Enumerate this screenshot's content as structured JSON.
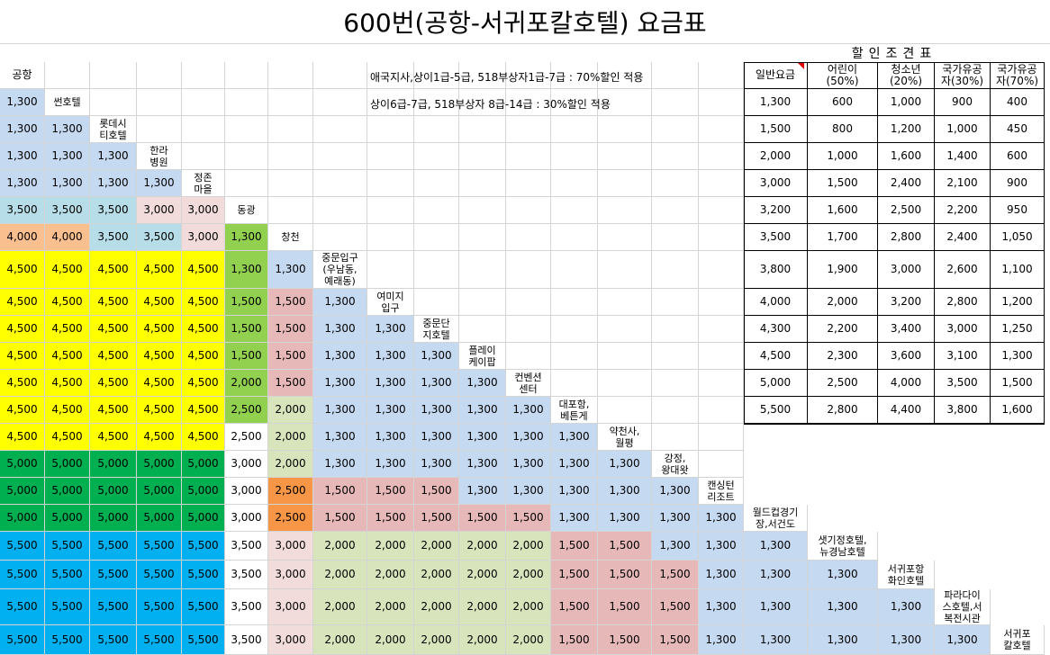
{
  "title": "600번(공항-서귀포칼호텔) 요금표",
  "notes": [
    "애국지사,상이1급-5급, 518부상자1급-7급 : 70%할인 적용",
    "상이6급-7급, 518부상자 8급-14급 : 30%할인 적용"
  ],
  "discount": {
    "title": "할인조견표",
    "headers": [
      "일반요금",
      "어린이\n(50%)",
      "청소년\n(20%)",
      "국가유공\n자(30%)",
      "국가유공\n자(70%)"
    ],
    "rows": [
      [
        "1,300",
        "600",
        "1,000",
        "900",
        "400"
      ],
      [
        "1,500",
        "800",
        "1,200",
        "1,000",
        "450"
      ],
      [
        "2,000",
        "1,000",
        "1,600",
        "1,400",
        "600"
      ],
      [
        "3,000",
        "1,500",
        "2,400",
        "2,100",
        "900"
      ],
      [
        "3,200",
        "1,600",
        "2,500",
        "2,200",
        "950"
      ],
      [
        "3,500",
        "1,700",
        "2,800",
        "2,400",
        "1,050"
      ],
      [
        "3,800",
        "1,900",
        "3,000",
        "2,600",
        "1,100"
      ],
      [
        "4,000",
        "2,000",
        "3,200",
        "2,800",
        "1,200"
      ],
      [
        "4,300",
        "2,200",
        "3,400",
        "3,000",
        "1,250"
      ],
      [
        "4,500",
        "2,300",
        "3,600",
        "3,100",
        "1,300"
      ],
      [
        "5,000",
        "2,500",
        "4,000",
        "3,500",
        "1,500"
      ],
      [
        "5,500",
        "2,800",
        "4,400",
        "3,800",
        "1,600"
      ]
    ]
  },
  "stops": [
    "공항",
    "썬호텔",
    "롯데시\n티호텔",
    "한라\n병원",
    "정존\n마을",
    "동광",
    "창천",
    "중문입구\n(우남동,\n예래동)",
    "여미지\n입구",
    "중문단\n지호텔",
    "플레이\n케이팝",
    "컨벤션\n센터",
    "대포항,\n베튼게",
    "약천사,\n월평",
    "강정,\n왕대왓",
    "캔싱턴\n리조트",
    "월드컵경기\n장,서건도",
    "샛기정호텔,\n뉴경남호텔",
    "서귀포항\n화인호텔",
    "파라다이\n스호텔,서\n복전시관",
    "서귀포\n칼호텔"
  ],
  "fares": [
    [
      "1,300"
    ],
    [
      "1,300",
      "1,300"
    ],
    [
      "1,300",
      "1,300",
      "1,300"
    ],
    [
      "1,300",
      "1,300",
      "1,300",
      "1,300"
    ],
    [
      "3,500",
      "3,500",
      "3,500",
      "3,000",
      "3,000"
    ],
    [
      "4,000",
      "4,000",
      "3,500",
      "3,500",
      "3,000",
      "1,300"
    ],
    [
      "4,500",
      "4,500",
      "4,500",
      "4,500",
      "4,500",
      "1,300",
      "1,300"
    ],
    [
      "4,500",
      "4,500",
      "4,500",
      "4,500",
      "4,500",
      "1,500",
      "1,500",
      "1,300"
    ],
    [
      "4,500",
      "4,500",
      "4,500",
      "4,500",
      "4,500",
      "1,500",
      "1,500",
      "1,300",
      "1,300"
    ],
    [
      "4,500",
      "4,500",
      "4,500",
      "4,500",
      "4,500",
      "1,500",
      "1,500",
      "1,300",
      "1,300",
      "1,300"
    ],
    [
      "4,500",
      "4,500",
      "4,500",
      "4,500",
      "4,500",
      "2,000",
      "1,500",
      "1,300",
      "1,300",
      "1,300",
      "1,300"
    ],
    [
      "4,500",
      "4,500",
      "4,500",
      "4,500",
      "4,500",
      "2,500",
      "2,000",
      "1,300",
      "1,300",
      "1,300",
      "1,300",
      "1,300"
    ],
    [
      "4,500",
      "4,500",
      "4,500",
      "4,500",
      "4,500",
      "2,500",
      "2,000",
      "1,300",
      "1,300",
      "1,300",
      "1,300",
      "1,300",
      "1,300"
    ],
    [
      "5,000",
      "5,000",
      "5,000",
      "5,000",
      "5,000",
      "3,000",
      "2,000",
      "1,300",
      "1,300",
      "1,300",
      "1,300",
      "1,300",
      "1,300",
      "1,300"
    ],
    [
      "5,000",
      "5,000",
      "5,000",
      "5,000",
      "5,000",
      "3,000",
      "2,500",
      "1,500",
      "1,500",
      "1,500",
      "1,300",
      "1,300",
      "1,300",
      "1,300",
      "1,300"
    ],
    [
      "5,000",
      "5,000",
      "5,000",
      "5,000",
      "5,000",
      "3,000",
      "2,500",
      "1,500",
      "1,500",
      "1,500",
      "1,500",
      "1,500",
      "1,300",
      "1,300",
      "1,300",
      "1,300"
    ],
    [
      "5,500",
      "5,500",
      "5,500",
      "5,500",
      "5,500",
      "3,500",
      "3,000",
      "2,000",
      "2,000",
      "2,000",
      "2,000",
      "2,000",
      "1,500",
      "1,500",
      "1,300",
      "1,300",
      "1,300"
    ],
    [
      "5,500",
      "5,500",
      "5,500",
      "5,500",
      "5,500",
      "3,500",
      "3,000",
      "2,000",
      "2,000",
      "2,000",
      "2,000",
      "2,000",
      "1,500",
      "1,500",
      "1,500",
      "1,300",
      "1,300",
      "1,300"
    ],
    [
      "5,500",
      "5,500",
      "5,500",
      "5,500",
      "5,500",
      "3,500",
      "3,000",
      "2,000",
      "2,000",
      "2,000",
      "2,000",
      "2,000",
      "1,500",
      "1,500",
      "1,500",
      "1,300",
      "1,300",
      "1,300",
      "1,300"
    ],
    [
      "5,500",
      "5,500",
      "5,500",
      "5,500",
      "5,500",
      "3,500",
      "3,000",
      "2,000",
      "2,000",
      "2,000",
      "2,000",
      "2,000",
      "1,500",
      "1,500",
      "1,500",
      "1,300",
      "1,300",
      "1,300",
      "1,300",
      "1,300"
    ]
  ],
  "colors": {
    "1,300": "#c5d9f1",
    "1,500": "#e6b8b7",
    "2,000": "#d8e4bc",
    "2,500": "#f79646",
    "3,000": "#f2dcdb",
    "3,500": "#b7dee8",
    "4,000": "#fabf8f",
    "4,500": "#ffff00",
    "5,000": "#00b050",
    "5,500": "#00b0f0",
    "light1300": "#c5d9f1",
    "r4c3": "#ebf1de",
    "r4c4": "#ebf1de",
    "r4_3000_first": "#ebf1de",
    "green1300": "#92d050",
    "green1500": "#92d050",
    "green2000": "#92d050",
    "green2500": "#92d050",
    "col5_3000": "#ffffff"
  }
}
